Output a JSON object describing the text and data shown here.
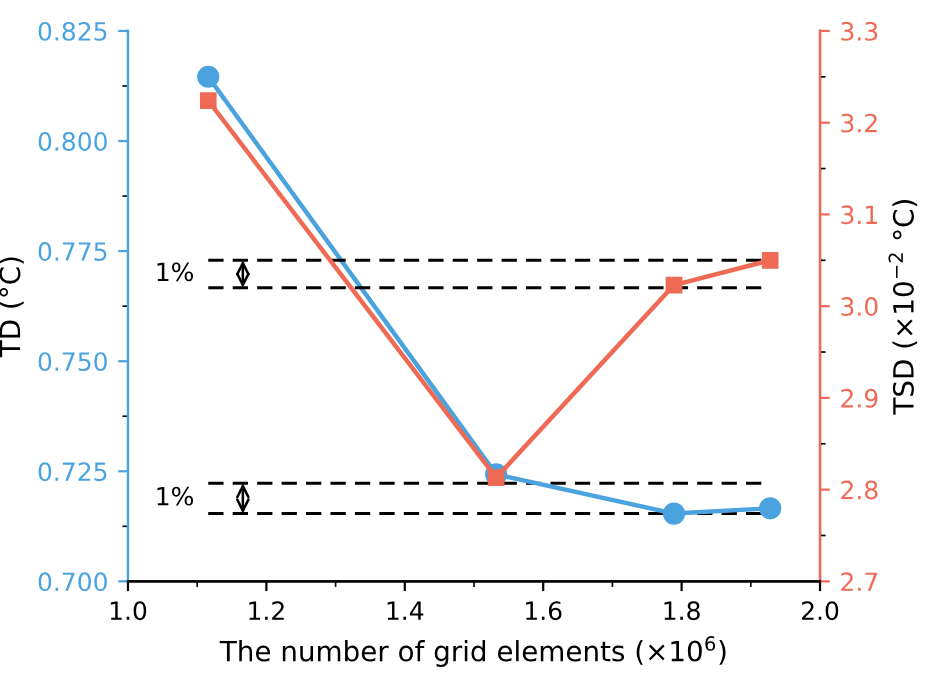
{
  "chart_data": {
    "type": "line",
    "xlabel": "The number of grid elements (×10$^{6}$)",
    "ylabel": "TD (°C)",
    "y2label": "TSD (×10$^{−2}$ °C)",
    "xlim": [
      1.0,
      2.0
    ],
    "xticks": [
      {
        "value": 1.0,
        "label": "1.0"
      },
      1.2,
      1.4,
      1.6,
      1.8,
      {
        "value": 2.0,
        "label": "2.0"
      }
    ],
    "ylim": [
      0.7,
      0.825
    ],
    "yticks": [
      {
        "value": 0.7,
        "label": "0.700"
      },
      0.725,
      {
        "value": 0.75,
        "label": "0.750"
      },
      0.775,
      {
        "value": 0.8,
        "label": "0.800"
      },
      0.825
    ],
    "y2lim": [
      2.7,
      3.3
    ],
    "y2ticks": [
      2.7,
      2.8,
      2.9,
      {
        "value": 3.0,
        "label": "3.0"
      },
      3.1,
      3.2,
      3.3
    ],
    "series": [
      {
        "color": "#4aa3df",
        "marker": "circle",
        "x": [
          1.116,
          1.532,
          1.789,
          1.928
        ],
        "values": [
          0.8146,
          0.7243,
          0.7154,
          0.7166
        ]
      },
      {
        "color": "#ef6a55",
        "marker": "square",
        "axis": "y2",
        "x": [
          1.116,
          1.532,
          1.789,
          1.928
        ],
        "values": [
          3.224,
          2.813,
          3.023,
          3.05
        ]
      }
    ],
    "ref_lines": [
      {
        "axis": "y2",
        "value": 3.05,
        "color": "#000000",
        "line_style": "dashed"
      },
      {
        "axis": "y2",
        "value": 3.02,
        "color": "#000000",
        "line_style": "dashed"
      },
      {
        "axis": "y",
        "value": 0.7223,
        "color": "#000000",
        "line_style": "dashed"
      },
      {
        "axis": "y",
        "value": 0.7154,
        "color": "#000000",
        "line_style": "dashed"
      }
    ],
    "annotations": [
      "1%",
      "1%"
    ],
    "grid": false
  }
}
